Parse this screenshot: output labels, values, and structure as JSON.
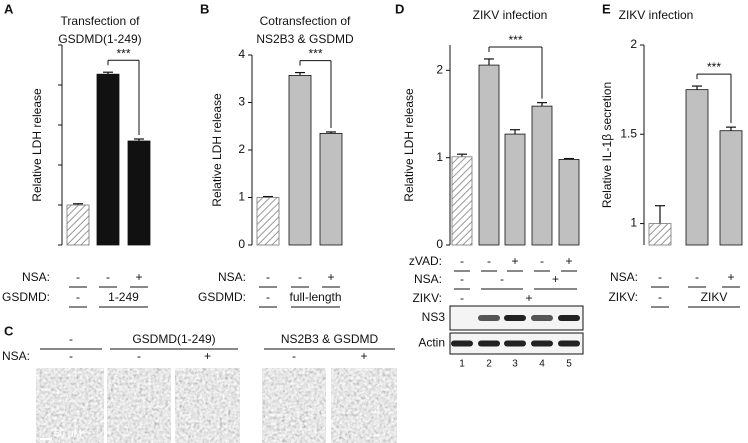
{
  "chart_data": [
    {
      "panel": "A",
      "type": "bar",
      "title": [
        "Transfection of",
        "GSDMD(1-249)"
      ],
      "ylabel": "Relative LDH release",
      "values": [
        1.0,
        4.27,
        2.6
      ],
      "errors": [
        0.03,
        0.05,
        0.05
      ],
      "hatched": [
        true,
        false,
        false
      ],
      "color": "#111111",
      "ylim": [
        0,
        5
      ],
      "yticks": [
        0,
        1,
        2,
        3,
        4,
        5
      ],
      "tick_labels": false,
      "significance": "***",
      "conditions": [
        {
          "label": "NSA:",
          "marks": [
            "-",
            "-",
            "+"
          ]
        },
        {
          "label": "GSDMD:",
          "marks": [
            "-",
            "1-249"
          ]
        }
      ]
    },
    {
      "panel": "B",
      "type": "bar",
      "title": [
        "Cotransfection of",
        "NS2B3 & GSDMD"
      ],
      "ylabel": "Relative LDH release",
      "values": [
        1.0,
        3.57,
        2.35
      ],
      "errors": [
        0.02,
        0.06,
        0.03
      ],
      "hatched": [
        true,
        false,
        false
      ],
      "color": "#c0c0c0",
      "ylim": [
        0,
        4
      ],
      "yticks": [
        0,
        1,
        2,
        3,
        4
      ],
      "tick_labels": true,
      "significance": "***",
      "conditions": [
        {
          "label": "NSA:",
          "marks": [
            "-",
            "-",
            "+"
          ]
        },
        {
          "label": "GSDMD:",
          "marks": [
            "-",
            "full-length"
          ]
        }
      ]
    },
    {
      "panel": "D",
      "type": "bar",
      "title": [
        "ZIKV infection"
      ],
      "ylabel": "Relative LDH release",
      "values": [
        1.01,
        2.06,
        1.27,
        1.59,
        0.98
      ],
      "errors": [
        0.03,
        0.07,
        0.05,
        0.04,
        0.01
      ],
      "hatched": [
        true,
        false,
        false,
        false,
        false
      ],
      "color": "#c0c0c0",
      "ylim": [
        0,
        2.29
      ],
      "yticks": [
        0,
        1,
        2
      ],
      "tick_labels": true,
      "significance": "***",
      "conditions": [
        {
          "label": "zVAD:",
          "marks": [
            "-",
            "-",
            "+",
            "-",
            "+"
          ]
        },
        {
          "label": "NSA:",
          "marks": [
            "-",
            "-",
            "+"
          ]
        },
        {
          "label": "ZIKV:",
          "marks": [
            "-",
            "+"
          ]
        }
      ],
      "blot": {
        "rows": [
          "NS3",
          "Actin"
        ],
        "lanes": [
          "1",
          "2",
          "3",
          "4",
          "5"
        ]
      }
    },
    {
      "panel": "E",
      "type": "bar",
      "title": [
        "ZIKV infection"
      ],
      "ylabel": "Relative IL-1β secretion",
      "values": [
        1.0,
        1.75,
        1.52
      ],
      "errors": [
        0.1,
        0.02,
        0.02
      ],
      "hatched": [
        true,
        false,
        false
      ],
      "color": "#c0c0c0",
      "ylim": [
        0.88,
        2
      ],
      "yticks": [
        1,
        1.5,
        2
      ],
      "tick_labels": true,
      "significance": "***",
      "conditions": [
        {
          "label": "NSA:",
          "marks": [
            "-",
            "-",
            "+"
          ]
        },
        {
          "label": "ZIKV:",
          "marks": [
            "-",
            "ZIKV"
          ]
        }
      ]
    }
  ],
  "image_panel": {
    "panel": "C",
    "groups": [
      "-",
      "GSDMD(1-249)",
      "NS2B3 & GSDMD"
    ],
    "treatment_label": "NSA:",
    "treatments": [
      "-",
      "+",
      "-",
      "+"
    ],
    "scale_bar": "50 μM"
  }
}
